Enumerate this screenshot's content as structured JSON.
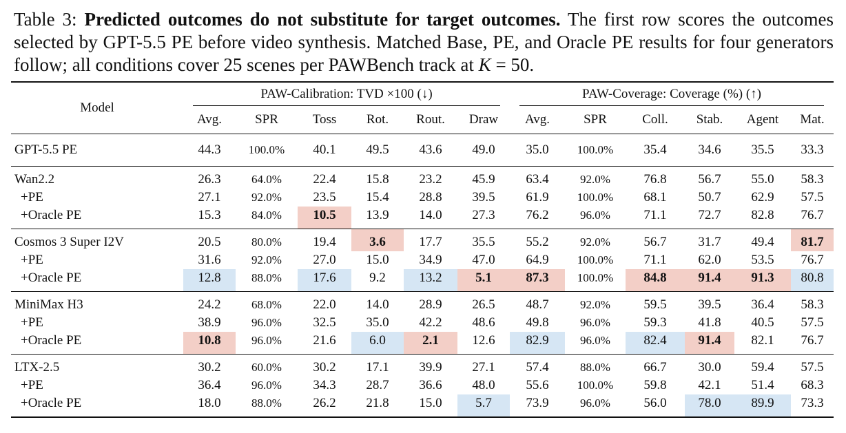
{
  "caption": {
    "label": "Table 3:",
    "bold": "Predicted outcomes do not substitute for target outcomes.",
    "text": "The first row scores the outcomes selected by GPT-5.5 PE before video synthesis. Matched Base, PE, and Oracle PE results for four generators follow; all conditions cover 25 scenes per PAWBench track at",
    "math": "K",
    "math_tail": "= 50."
  },
  "header": {
    "model": "Model",
    "group1": "PAW-Calibration: TVD ×100 (↓)",
    "group2": "PAW-Coverage: Coverage (%) (↑)",
    "columns": [
      "Avg.",
      "SPR",
      "Toss",
      "Rot.",
      "Rout.",
      "Draw",
      "Avg.",
      "SPR",
      "Coll.",
      "Stab.",
      "Agent",
      "Mat."
    ]
  },
  "highlight_colors": {
    "red": "#f3cfc7",
    "blue": "#d6e6f4"
  },
  "rows": [
    {
      "model": "GPT-5.5 PE",
      "cells": [
        "44.3",
        "100.0%",
        "40.1",
        "49.5",
        "43.6",
        "49.0",
        "35.0",
        "100.0%",
        "35.4",
        "34.6",
        "35.5",
        "33.3"
      ]
    },
    {
      "model": "Wan2.2",
      "cells": [
        "26.3",
        "64.0%",
        "22.4",
        "15.8",
        "23.2",
        "45.9",
        "63.4",
        "92.0%",
        "76.8",
        "56.7",
        "55.0",
        "58.3"
      ]
    },
    {
      "model": "+PE",
      "cells": [
        "27.1",
        "92.0%",
        "23.5",
        "15.4",
        "28.8",
        "39.5",
        "61.9",
        "100.0%",
        "68.1",
        "50.7",
        "62.9",
        "57.5"
      ]
    },
    {
      "model": "+Oracle PE",
      "cells": [
        "15.3",
        "84.0%",
        "10.5",
        "13.9",
        "14.0",
        "27.3",
        "76.2",
        "96.0%",
        "71.1",
        "72.7",
        "82.8",
        "76.7"
      ]
    },
    {
      "model": "Cosmos 3 Super I2V",
      "cells": [
        "20.5",
        "80.0%",
        "19.4",
        "3.6",
        "17.7",
        "35.5",
        "55.2",
        "92.0%",
        "56.7",
        "31.7",
        "49.4",
        "81.7"
      ]
    },
    {
      "model": "+PE",
      "cells": [
        "31.6",
        "92.0%",
        "27.0",
        "15.0",
        "34.9",
        "47.0",
        "64.9",
        "100.0%",
        "71.1",
        "62.0",
        "53.5",
        "76.7"
      ]
    },
    {
      "model": "+Oracle PE",
      "cells": [
        "12.8",
        "88.0%",
        "17.6",
        "9.2",
        "13.2",
        "5.1",
        "87.3",
        "100.0%",
        "84.8",
        "91.4",
        "91.3",
        "80.8"
      ]
    },
    {
      "model": "MiniMax H3",
      "cells": [
        "24.2",
        "68.0%",
        "22.0",
        "14.0",
        "28.9",
        "26.5",
        "48.7",
        "92.0%",
        "59.5",
        "39.5",
        "36.4",
        "58.3"
      ]
    },
    {
      "model": "+PE",
      "cells": [
        "38.9",
        "96.0%",
        "32.5",
        "35.0",
        "42.2",
        "48.6",
        "49.8",
        "96.0%",
        "59.3",
        "41.8",
        "40.5",
        "57.5"
      ]
    },
    {
      "model": "+Oracle PE",
      "cells": [
        "10.8",
        "96.0%",
        "21.6",
        "6.0",
        "2.1",
        "12.6",
        "82.9",
        "96.0%",
        "82.4",
        "91.4",
        "82.1",
        "76.7"
      ]
    },
    {
      "model": "LTX-2.5",
      "cells": [
        "30.2",
        "60.0%",
        "30.2",
        "17.1",
        "39.9",
        "27.1",
        "57.4",
        "88.0%",
        "66.7",
        "30.0",
        "59.4",
        "57.5"
      ]
    },
    {
      "model": "+PE",
      "cells": [
        "36.4",
        "96.0%",
        "34.3",
        "28.7",
        "36.6",
        "48.0",
        "55.6",
        "100.0%",
        "59.8",
        "42.1",
        "51.4",
        "68.3"
      ]
    },
    {
      "model": "+Oracle PE",
      "cells": [
        "18.0",
        "88.0%",
        "26.2",
        "21.8",
        "15.0",
        "5.7",
        "73.9",
        "96.0%",
        "56.0",
        "78.0",
        "89.9",
        "73.3"
      ]
    }
  ]
}
